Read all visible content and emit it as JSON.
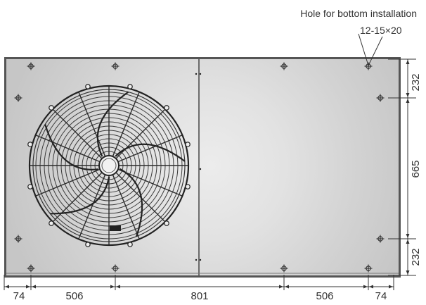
{
  "note": {
    "title": "Hole for bottom installation",
    "spec": "12-15×20"
  },
  "dimensions": {
    "bottom": [
      "74",
      "506",
      "801",
      "506",
      "74"
    ],
    "right": [
      "232",
      "665",
      "232"
    ]
  }
}
